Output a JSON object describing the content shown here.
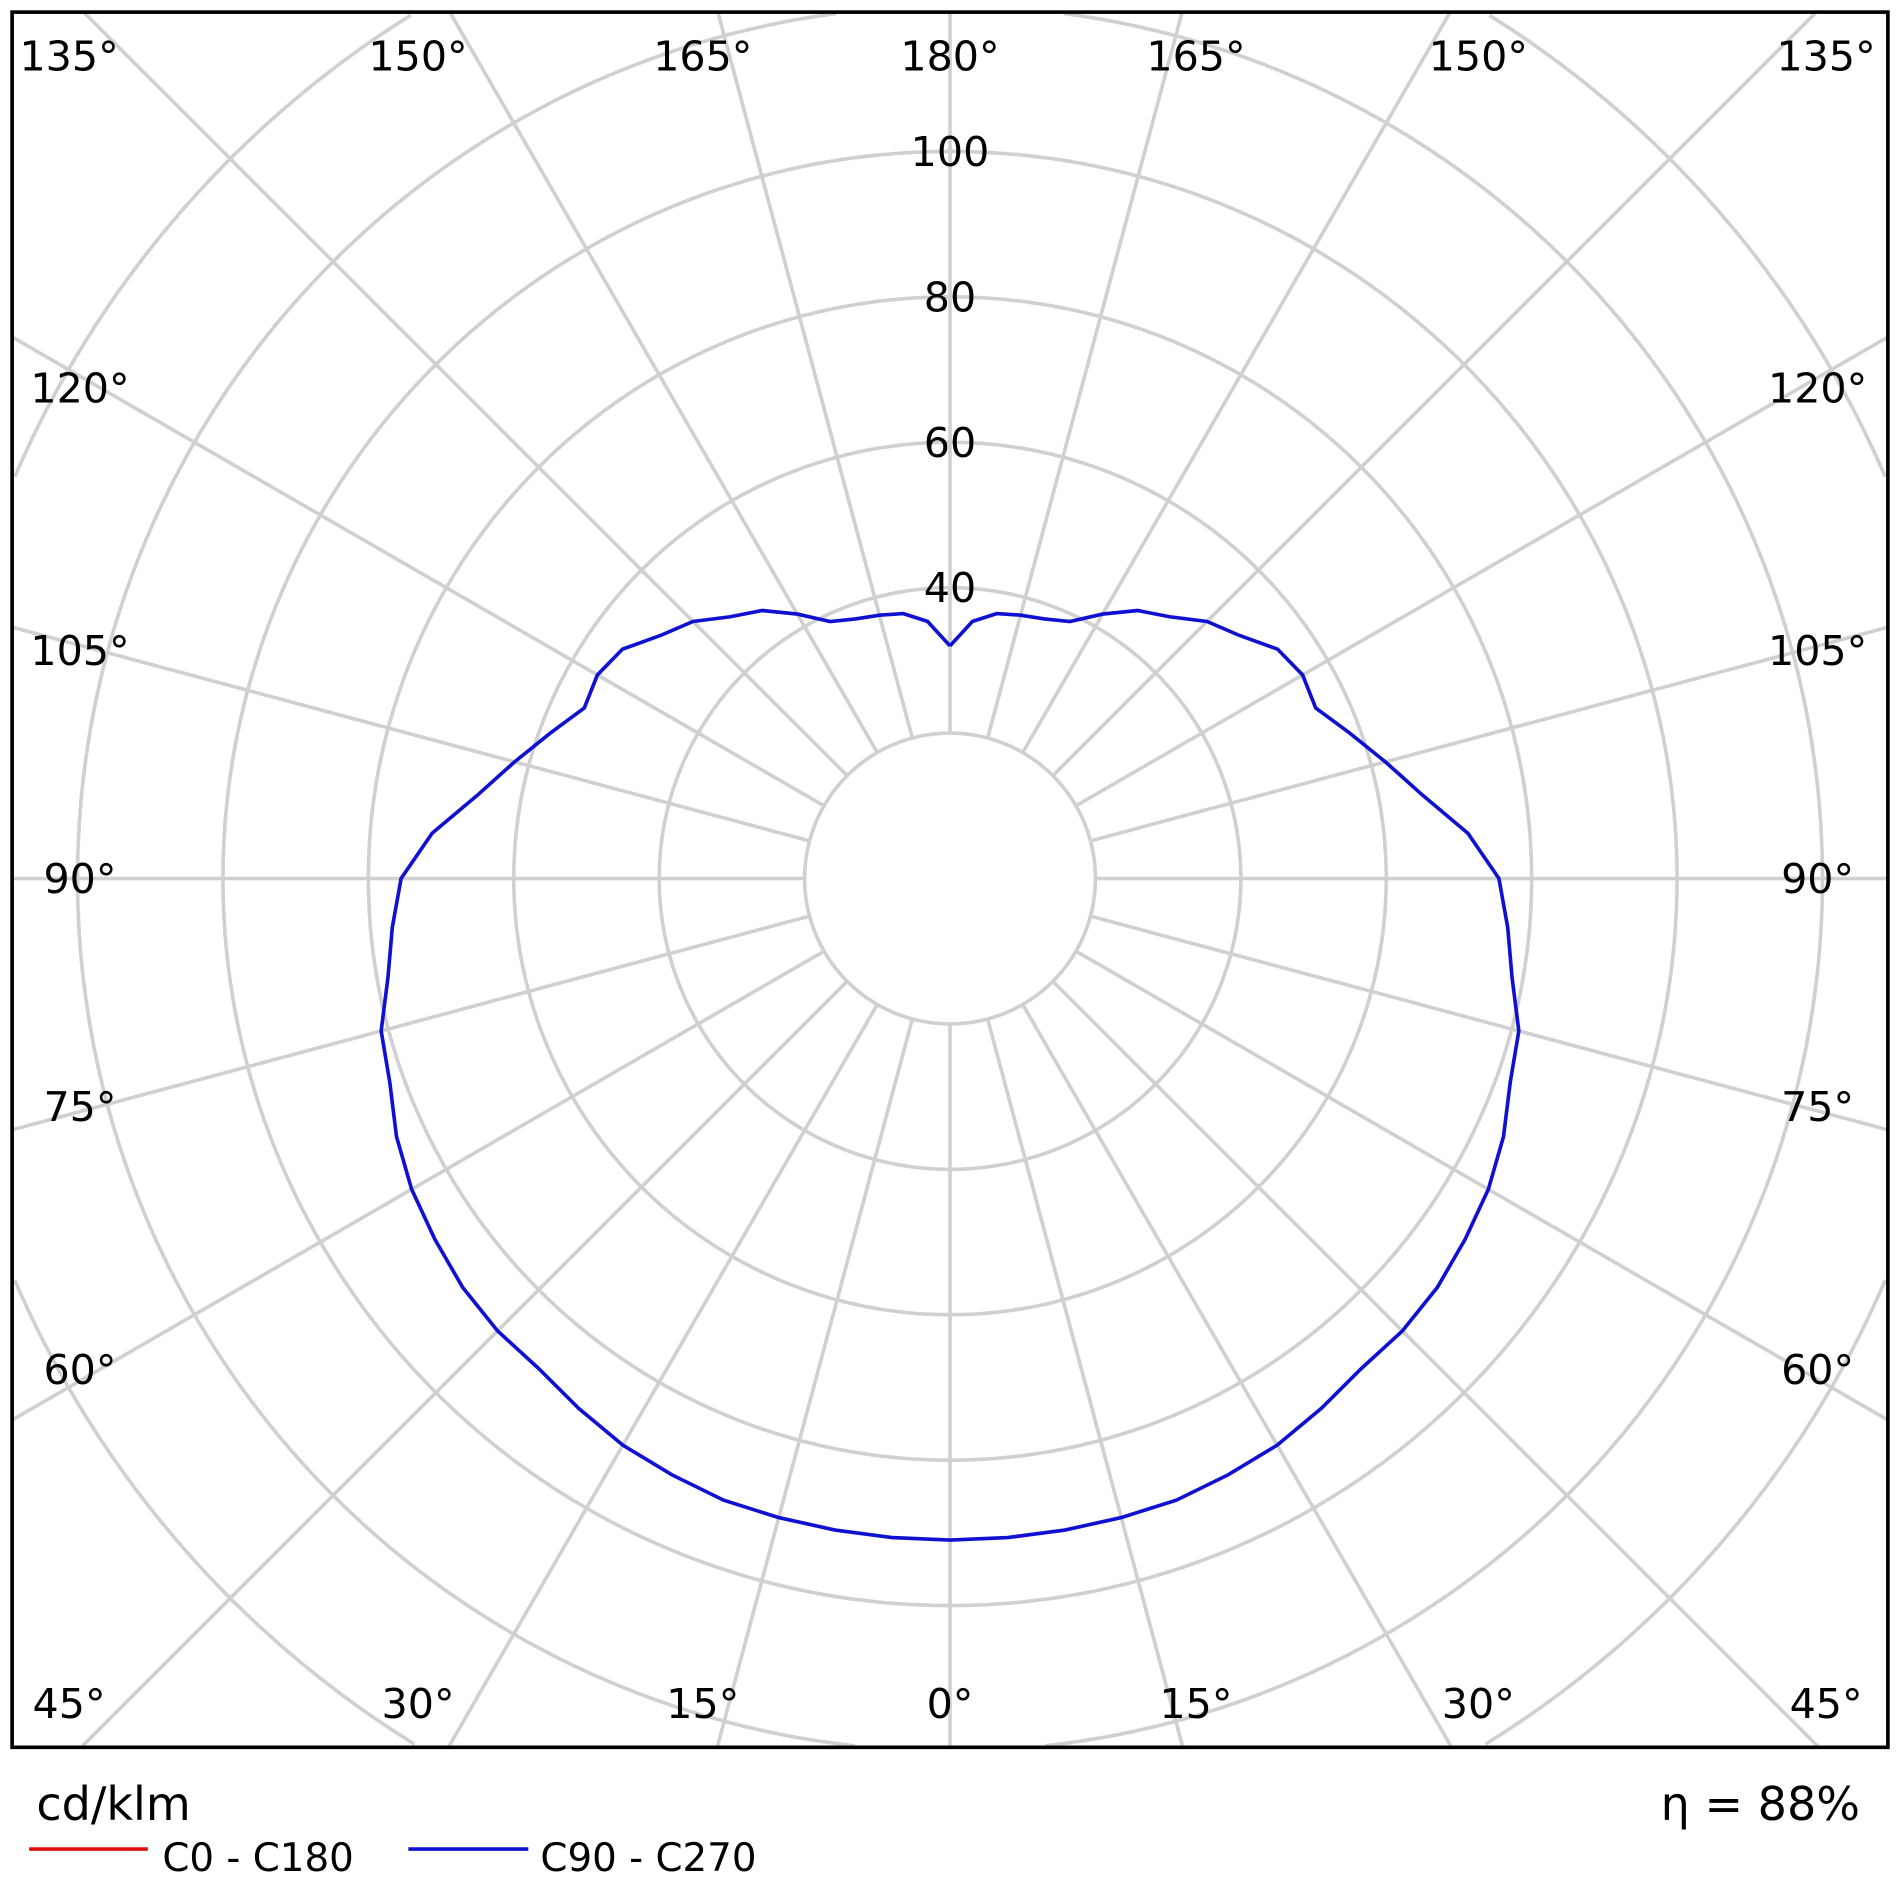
{
  "chart_data": {
    "type": "polar",
    "unit_label": "cd/klm",
    "efficiency_label": "η = 88%",
    "radial_ticks": [
      20,
      40,
      60,
      80,
      100,
      120,
      140
    ],
    "radial_tick_labels": [
      "40",
      "60",
      "80",
      "100"
    ],
    "angle_labels": {
      "top": [
        "135°",
        "150°",
        "165°",
        "180°",
        "165°",
        "150°",
        "135°"
      ],
      "left": [
        "120°",
        "105°",
        "90°",
        "75°",
        "60°"
      ],
      "right": [
        "120°",
        "105°",
        "90°",
        "75°",
        "60°"
      ],
      "bottom": [
        "45°",
        "30°",
        "15°",
        "0°",
        "15°",
        "30°",
        "45°"
      ]
    },
    "grid": true,
    "legend_position": "bottom-left",
    "series": [
      {
        "name": "C0 - C180",
        "color": "#e01010",
        "angles": [],
        "values": []
      },
      {
        "name": "C90 - C270",
        "color": "#1010d0",
        "angles": [
          0,
          5,
          10,
          15,
          20,
          25,
          30,
          35,
          40,
          45,
          50,
          55,
          60,
          65,
          70,
          75,
          80,
          85,
          90,
          95,
          100,
          105,
          110,
          115,
          120,
          125,
          130,
          135,
          140,
          145,
          150,
          155,
          160,
          165,
          170,
          175,
          180
        ],
        "values": [
          91,
          91,
          91,
          91,
          91,
          90.5,
          90,
          89,
          88,
          88,
          87.5,
          86.5,
          85.5,
          84,
          82,
          81,
          78.5,
          77,
          75.5,
          71.5,
          66,
          62,
          58.5,
          55.5,
          56,
          55,
          52,
          50,
          47,
          45,
          42,
          39,
          38,
          37.5,
          37,
          35.5,
          32
        ]
      }
    ]
  }
}
